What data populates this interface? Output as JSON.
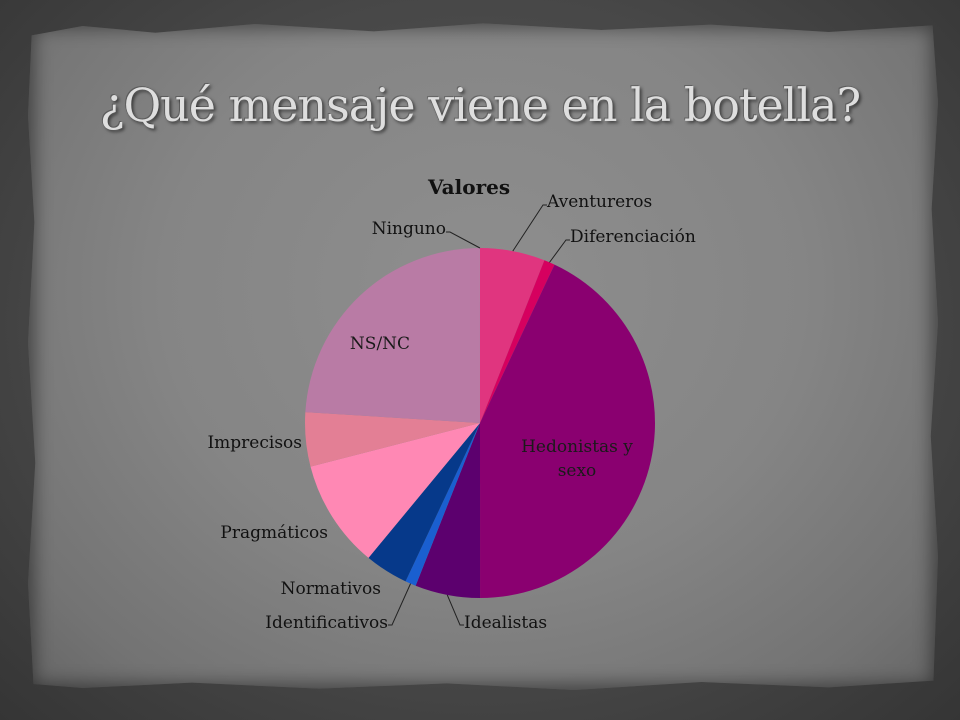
{
  "slide": {
    "title": "¿Qué mensaje viene en la botella?"
  },
  "chart_data": {
    "type": "pie",
    "title": "Valores",
    "start_angle_deg": 0,
    "direction": "clockwise",
    "slices": [
      {
        "name": "Aventureros",
        "value": 6,
        "color": "#e0357f"
      },
      {
        "name": "Diferenciación",
        "value": 1,
        "color": "#d6005f"
      },
      {
        "name": "Hedonistas y sexo",
        "value": 43,
        "color": "#8a0070"
      },
      {
        "name": "Idealistas",
        "value": 6,
        "color": "#5c006e"
      },
      {
        "name": "Identificativos",
        "value": 1,
        "color": "#1a5fd0"
      },
      {
        "name": "Normativos",
        "value": 4,
        "color": "#06398a"
      },
      {
        "name": "Pragmáticos",
        "value": 10,
        "color": "#ff88b4"
      },
      {
        "name": "Imprecisos",
        "value": 5,
        "color": "#e37f95"
      },
      {
        "name": "NS/NC",
        "value": 24,
        "color": "#b97ba5"
      },
      {
        "name": "Ninguno",
        "value": 0.01,
        "color": "#c18ab0"
      }
    ]
  }
}
